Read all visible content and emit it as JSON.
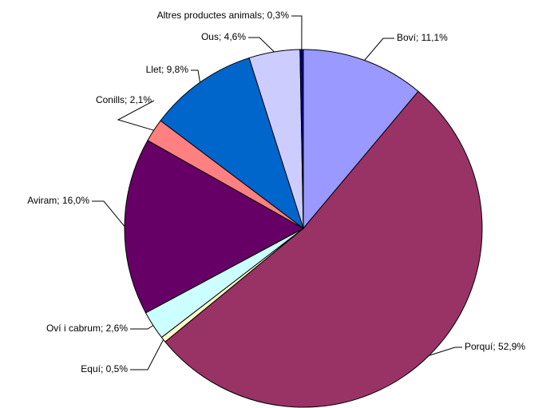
{
  "chart_data": {
    "type": "pie",
    "values": [
      11.1,
      52.9,
      0.5,
      2.6,
      16.0,
      2.1,
      9.8,
      4.6,
      0.3
    ],
    "value_labels": [
      "Boví; 11,1%",
      "Porquí; 52,9%",
      "Equí; 0,5%",
      "Oví i cabrum; 2,6%",
      "Aviram; 16,0%",
      "Conills; 2,1%",
      "Llet; 9,8%",
      "Ous; 4,6%",
      "Altres productes animals; 0,3%"
    ],
    "colors": [
      "#9999ff",
      "#993366",
      "#ffffcc",
      "#ccffff",
      "#660066",
      "#ff8080",
      "#0066cc",
      "#ccccff",
      "#000080"
    ]
  }
}
